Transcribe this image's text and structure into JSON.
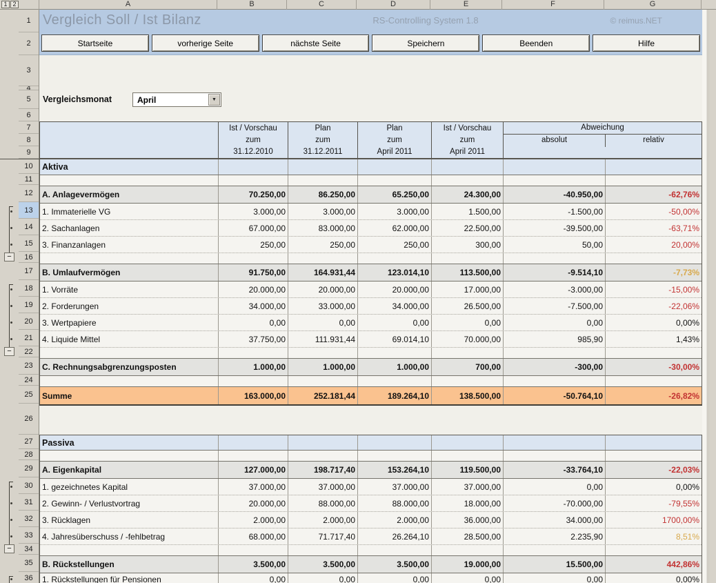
{
  "window": {
    "title": "Vergleich Soll / Ist Bilanz",
    "system": "RS-Controlling System 1.8",
    "copyright": "© reimus.NET"
  },
  "toolbar": {
    "buttons": [
      "Startseite",
      "vorherige Seite",
      "nächste Seite",
      "Speichern",
      "Beenden",
      "Hilfe"
    ]
  },
  "controls": {
    "month_label": "Vergleichsmonat",
    "month_value": "April",
    "dropdown_icon": "▼"
  },
  "outline": {
    "level_buttons": [
      "1",
      "2"
    ],
    "collapse_icon": "−",
    "groups": [
      {
        "from": 13,
        "to": 15
      },
      {
        "from": 18,
        "to": 21
      },
      {
        "from": 30,
        "to": 33
      },
      {
        "from": 36,
        "to": 36,
        "open_ended": true
      }
    ]
  },
  "columns": [
    "A",
    "B",
    "C",
    "D",
    "E",
    "F",
    "G"
  ],
  "table_header": {
    "col1_lines": [
      "Ist / Vorschau",
      "zum",
      "31.12.2010"
    ],
    "col2_lines": [
      "Plan",
      "zum",
      "31.12.2011"
    ],
    "col3_lines": [
      "Plan",
      "zum",
      "April 2011"
    ],
    "col4_lines": [
      "Ist / Vorschau",
      "zum",
      "April 2011"
    ],
    "deviation": "Abweichung",
    "absolute": "absolut",
    "relative": "relativ"
  },
  "rows": [
    {
      "num": 1
    },
    {
      "num": 2
    },
    {
      "num": 3
    },
    {
      "num": 4
    },
    {
      "num": 5
    },
    {
      "num": 6
    },
    {
      "num": 7
    },
    {
      "num": 8
    },
    {
      "num": 9
    },
    {
      "num": 10,
      "kind": "title",
      "label": "Aktiva"
    },
    {
      "num": 11,
      "kind": "blank"
    },
    {
      "num": 12,
      "kind": "section",
      "label": "A. Anlagevermögen",
      "vals": [
        "70.250,00",
        "86.250,00",
        "65.250,00",
        "24.300,00",
        "-40.950,00",
        "-62,76%"
      ],
      "pc": "red"
    },
    {
      "num": 13,
      "kind": "detail",
      "selected": true,
      "label": "1. Immaterielle VG",
      "vals": [
        "3.000,00",
        "3.000,00",
        "3.000,00",
        "1.500,00",
        "-1.500,00",
        "-50,00%"
      ],
      "pc": "red"
    },
    {
      "num": 14,
      "kind": "detail",
      "label": "2. Sachanlagen",
      "vals": [
        "67.000,00",
        "83.000,00",
        "62.000,00",
        "22.500,00",
        "-39.500,00",
        "-63,71%"
      ],
      "pc": "red"
    },
    {
      "num": 15,
      "kind": "detail",
      "label": "3. Finanzanlagen",
      "vals": [
        "250,00",
        "250,00",
        "250,00",
        "300,00",
        "50,00",
        "20,00%"
      ],
      "pc": "red"
    },
    {
      "num": 16,
      "kind": "blank"
    },
    {
      "num": 17,
      "kind": "section",
      "label": "B. Umlaufvermögen",
      "vals": [
        "91.750,00",
        "164.931,44",
        "123.014,10",
        "113.500,00",
        "-9.514,10",
        "-7,73%"
      ],
      "pc": "amber"
    },
    {
      "num": 18,
      "kind": "detail",
      "label": "1. Vorräte",
      "vals": [
        "20.000,00",
        "20.000,00",
        "20.000,00",
        "17.000,00",
        "-3.000,00",
        "-15,00%"
      ],
      "pc": "red"
    },
    {
      "num": 19,
      "kind": "detail",
      "label": "2. Forderungen",
      "vals": [
        "34.000,00",
        "33.000,00",
        "34.000,00",
        "26.500,00",
        "-7.500,00",
        "-22,06%"
      ],
      "pc": "red"
    },
    {
      "num": 20,
      "kind": "detail",
      "label": "3. Wertpapiere",
      "vals": [
        "0,00",
        "0,00",
        "0,00",
        "0,00",
        "0,00",
        "0,00%"
      ],
      "pc": "plain"
    },
    {
      "num": 21,
      "kind": "detail",
      "label": "4. Liquide Mittel",
      "vals": [
        "37.750,00",
        "111.931,44",
        "69.014,10",
        "70.000,00",
        "985,90",
        "1,43%"
      ],
      "pc": "plain"
    },
    {
      "num": 22,
      "kind": "blank"
    },
    {
      "num": 23,
      "kind": "section",
      "label": "C. Rechnungsabgrenzungsposten",
      "vals": [
        "1.000,00",
        "1.000,00",
        "1.000,00",
        "700,00",
        "-300,00",
        "-30,00%"
      ],
      "pc": "red"
    },
    {
      "num": 24,
      "kind": "blank"
    },
    {
      "num": 25,
      "kind": "sum",
      "label": "Summe",
      "vals": [
        "163.000,00",
        "252.181,44",
        "189.264,10",
        "138.500,00",
        "-50.764,10",
        "-26,82%"
      ],
      "pc": "red"
    },
    {
      "num": 26,
      "kind": "gap"
    },
    {
      "num": 27,
      "kind": "title",
      "label": "Passiva"
    },
    {
      "num": 28,
      "kind": "blank"
    },
    {
      "num": 29,
      "kind": "section",
      "label": "A. Eigenkapital",
      "vals": [
        "127.000,00",
        "198.717,40",
        "153.264,10",
        "119.500,00",
        "-33.764,10",
        "-22,03%"
      ],
      "pc": "red"
    },
    {
      "num": 30,
      "kind": "detail",
      "label": "1. gezeichnetes Kapital",
      "vals": [
        "37.000,00",
        "37.000,00",
        "37.000,00",
        "37.000,00",
        "0,00",
        "0,00%"
      ],
      "pc": "plain"
    },
    {
      "num": 31,
      "kind": "detail",
      "label": "2. Gewinn- / Verlustvortrag",
      "vals": [
        "20.000,00",
        "88.000,00",
        "88.000,00",
        "18.000,00",
        "-70.000,00",
        "-79,55%"
      ],
      "pc": "red"
    },
    {
      "num": 32,
      "kind": "detail",
      "label": "3. Rücklagen",
      "vals": [
        "2.000,00",
        "2.000,00",
        "2.000,00",
        "36.000,00",
        "34.000,00",
        "1700,00%"
      ],
      "pc": "red"
    },
    {
      "num": 33,
      "kind": "detail",
      "label": "4. Jahresüberschuss / -fehlbetrag",
      "vals": [
        "68.000,00",
        "71.717,40",
        "26.264,10",
        "28.500,00",
        "2.235,90",
        "8,51%"
      ],
      "pc": "amber"
    },
    {
      "num": 34,
      "kind": "blank"
    },
    {
      "num": 35,
      "kind": "section",
      "label": "B. Rückstellungen",
      "vals": [
        "3.500,00",
        "3.500,00",
        "3.500,00",
        "19.000,00",
        "15.500,00",
        "442,86%"
      ],
      "pc": "red"
    },
    {
      "num": 36,
      "kind": "detail",
      "label": "1. Rückstellungen für Pensionen",
      "vals": [
        "0,00",
        "0,00",
        "0,00",
        "0,00",
        "0,00",
        "0,00%"
      ],
      "pc": "plain"
    }
  ]
}
